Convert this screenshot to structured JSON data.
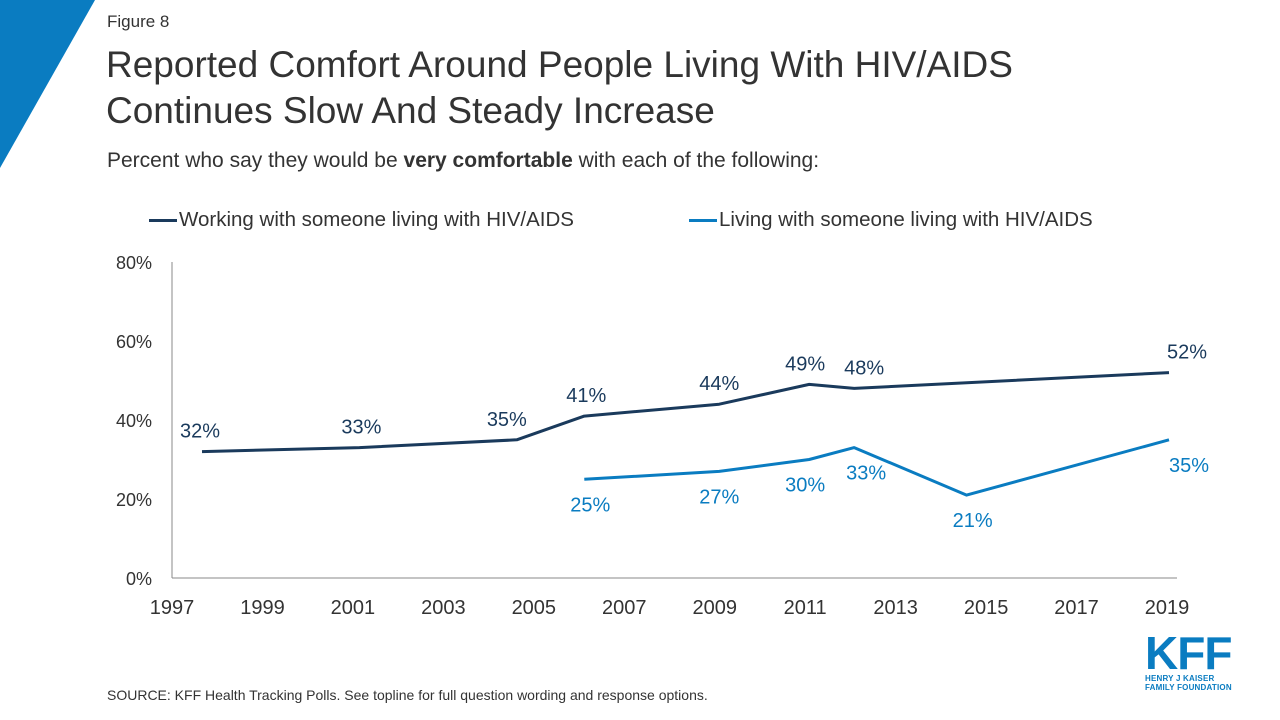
{
  "header": {
    "figure_label": "Figure 8",
    "title_line1": "Reported Comfort Around People Living With HIV/AIDS",
    "title_line2": "Continues Slow And Steady Increase",
    "subtitle_pre": "Percent who say they would be ",
    "subtitle_bold": "very comfortable",
    "subtitle_post": " with each of the following:"
  },
  "colors": {
    "corner_accent": "#0a7cc1",
    "series_working": "#1a3a5c",
    "series_living": "#0a7cc1"
  },
  "chart_data": {
    "type": "line",
    "title": "",
    "xlabel": "",
    "ylabel": "",
    "x_ticks": [
      "1997",
      "1999",
      "2001",
      "2003",
      "2005",
      "2007",
      "2009",
      "2011",
      "2013",
      "2015",
      "2017",
      "2019"
    ],
    "y_ticks": [
      "0%",
      "20%",
      "40%",
      "60%",
      "80%"
    ],
    "xlim": [
      1997,
      2019
    ],
    "ylim": [
      0,
      80
    ],
    "grid": false,
    "legend_position": "top",
    "series": [
      {
        "name": "Working with someone living with HIV/AIDS",
        "x": [
          1997.5,
          2001,
          2004.5,
          2006,
          2009,
          2011,
          2012,
          2019
        ],
        "values": [
          32,
          33,
          35,
          41,
          44,
          49,
          48,
          52
        ],
        "labels": [
          "32%",
          "33%",
          "35%",
          "41%",
          "44%",
          "49%",
          "48%",
          "52%"
        ]
      },
      {
        "name": "Living with someone living with HIV/AIDS",
        "x": [
          2006,
          2009,
          2011,
          2012,
          2014.5,
          2019
        ],
        "values": [
          25,
          27,
          30,
          33,
          21,
          35
        ],
        "labels": [
          "25%",
          "27%",
          "30%",
          "33%",
          "21%",
          "35%"
        ]
      }
    ]
  },
  "footer": {
    "source": "SOURCE: KFF Health Tracking Polls. See topline for full question wording and response options.",
    "logo_text": "KFF",
    "logo_sub1": "HENRY J KAISER",
    "logo_sub2": "FAMILY FOUNDATION"
  }
}
